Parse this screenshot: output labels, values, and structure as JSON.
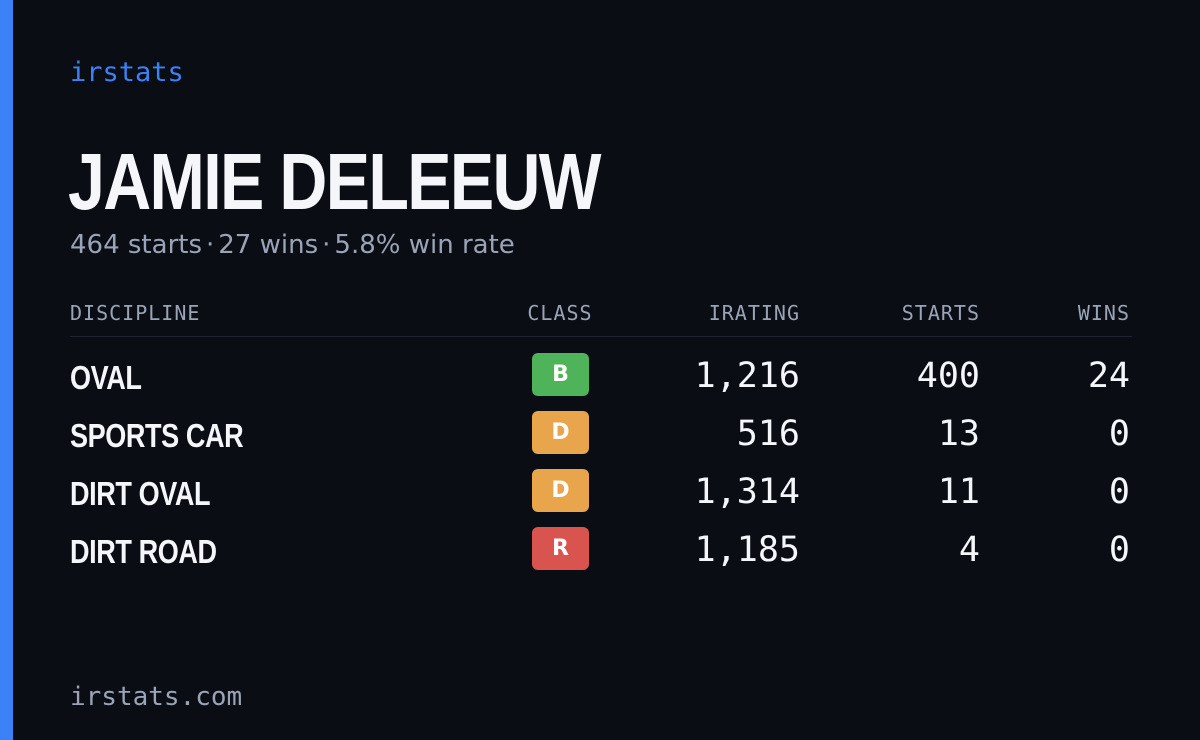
{
  "brand": {
    "name": "irstats",
    "accent_color": "#3b82f6"
  },
  "driver": {
    "name": "JAMIE DELEEUW",
    "summary": {
      "starts": "464 starts",
      "wins": "27 wins",
      "win_rate": "5.8% win rate",
      "separator": "·"
    }
  },
  "table": {
    "headers": {
      "discipline": "DISCIPLINE",
      "class": "CLASS",
      "irating": "IRATING",
      "starts": "STARTS",
      "wins": "WINS"
    },
    "rows": [
      {
        "discipline": "OVAL",
        "class": "B",
        "class_color": "#4fb359",
        "irating": "1,216",
        "starts": "400",
        "wins": "24"
      },
      {
        "discipline": "SPORTS CAR",
        "class": "D",
        "class_color": "#e8a54b",
        "irating": "516",
        "starts": "13",
        "wins": "0"
      },
      {
        "discipline": "DIRT OVAL",
        "class": "D",
        "class_color": "#e8a54b",
        "irating": "1,314",
        "starts": "11",
        "wins": "0"
      },
      {
        "discipline": "DIRT ROAD",
        "class": "R",
        "class_color": "#d9534f",
        "irating": "1,185",
        "starts": "4",
        "wins": "0"
      }
    ]
  },
  "footer": {
    "url": "irstats.com"
  }
}
